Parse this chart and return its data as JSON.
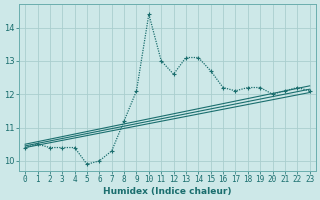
{
  "xlabel": "Humidex (Indice chaleur)",
  "bg_color": "#cde8e8",
  "grid_color": "#aacece",
  "line_color": "#1a6e6e",
  "xlim": [
    -0.5,
    23.5
  ],
  "ylim": [
    9.7,
    14.7
  ],
  "yticks": [
    10,
    11,
    12,
    13,
    14
  ],
  "xticks": [
    0,
    1,
    2,
    3,
    4,
    5,
    6,
    7,
    8,
    9,
    10,
    11,
    12,
    13,
    14,
    15,
    16,
    17,
    18,
    19,
    20,
    21,
    22,
    23
  ],
  "series1_x": [
    0,
    1,
    2,
    3,
    4,
    5,
    6,
    7,
    8,
    9,
    10,
    11,
    12,
    13,
    14,
    15,
    16,
    17,
    18,
    19,
    20,
    21,
    22,
    23
  ],
  "series1_y": [
    10.4,
    10.5,
    10.4,
    10.4,
    10.4,
    9.9,
    10.0,
    10.3,
    11.2,
    12.1,
    14.4,
    13.0,
    12.6,
    13.1,
    13.1,
    12.7,
    12.2,
    12.1,
    12.2,
    12.2,
    12.0,
    12.1,
    12.2,
    12.1
  ],
  "line2_x": [
    0,
    23
  ],
  "line2_y": [
    10.4,
    12.05
  ],
  "line3_x": [
    0,
    23
  ],
  "line3_y": [
    10.45,
    12.15
  ],
  "line4_x": [
    0,
    23
  ],
  "line4_y": [
    10.5,
    12.25
  ],
  "tick_fontsize": 5.5,
  "xlabel_fontsize": 6.5
}
